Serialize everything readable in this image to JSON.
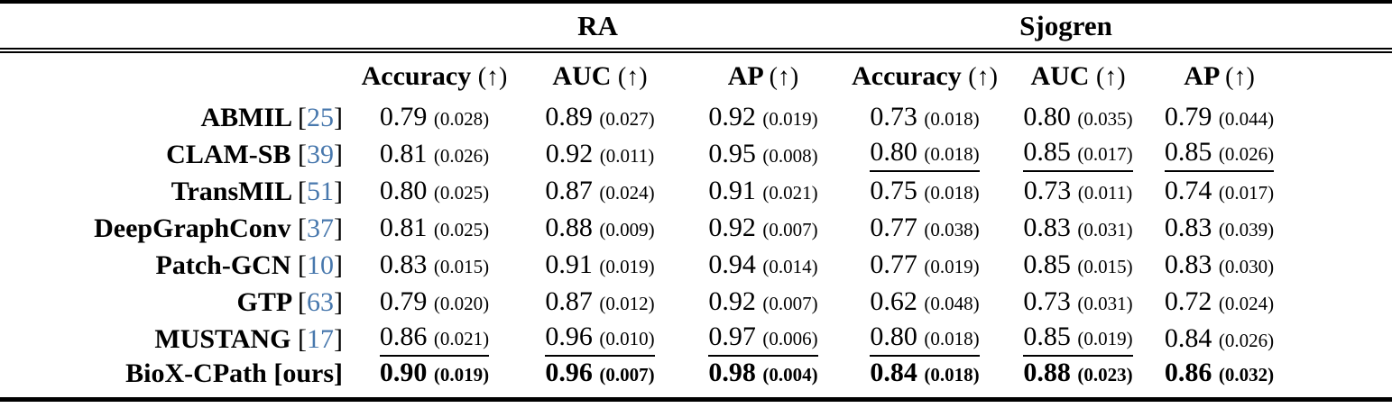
{
  "table": {
    "group_headers": [
      {
        "label": "RA"
      },
      {
        "label": "Sjogren"
      }
    ],
    "metric_headers": [
      {
        "name": "Accuracy",
        "arrow": "(↑)"
      },
      {
        "name": "AUC",
        "arrow": "(↑)"
      },
      {
        "name": "AP",
        "arrow": "(↑)"
      },
      {
        "name": "Accuracy",
        "arrow": "(↑)"
      },
      {
        "name": "AUC",
        "arrow": "(↑)"
      },
      {
        "name": "AP",
        "arrow": "(↑)"
      }
    ],
    "rows": [
      {
        "method": "ABMIL",
        "citation": "25",
        "is_ours": false,
        "cells": [
          {
            "value": "0.79",
            "std": "(0.028)",
            "underline": false,
            "bold": false
          },
          {
            "value": "0.89",
            "std": "(0.027)",
            "underline": false,
            "bold": false
          },
          {
            "value": "0.92",
            "std": "(0.019)",
            "underline": false,
            "bold": false
          },
          {
            "value": "0.73",
            "std": "(0.018)",
            "underline": false,
            "bold": false
          },
          {
            "value": "0.80",
            "std": "(0.035)",
            "underline": false,
            "bold": false
          },
          {
            "value": "0.79",
            "std": "(0.044)",
            "underline": false,
            "bold": false
          }
        ]
      },
      {
        "method": "CLAM-SB",
        "citation": "39",
        "is_ours": false,
        "cells": [
          {
            "value": "0.81",
            "std": "(0.026)",
            "underline": false,
            "bold": false
          },
          {
            "value": "0.92",
            "std": "(0.011)",
            "underline": false,
            "bold": false
          },
          {
            "value": "0.95",
            "std": "(0.008)",
            "underline": false,
            "bold": false
          },
          {
            "value": "0.80",
            "std": "(0.018)",
            "underline": true,
            "bold": false
          },
          {
            "value": "0.85",
            "std": "(0.017)",
            "underline": true,
            "bold": false
          },
          {
            "value": "0.85",
            "std": "(0.026)",
            "underline": true,
            "bold": false
          }
        ]
      },
      {
        "method": "TransMIL",
        "citation": "51",
        "is_ours": false,
        "cells": [
          {
            "value": "0.80",
            "std": "(0.025)",
            "underline": false,
            "bold": false
          },
          {
            "value": "0.87",
            "std": "(0.024)",
            "underline": false,
            "bold": false
          },
          {
            "value": "0.91",
            "std": "(0.021)",
            "underline": false,
            "bold": false
          },
          {
            "value": "0.75",
            "std": "(0.018)",
            "underline": false,
            "bold": false
          },
          {
            "value": "0.73",
            "std": "(0.011)",
            "underline": false,
            "bold": false
          },
          {
            "value": "0.74",
            "std": "(0.017)",
            "underline": false,
            "bold": false
          }
        ]
      },
      {
        "method": "DeepGraphConv",
        "citation": "37",
        "is_ours": false,
        "cells": [
          {
            "value": "0.81",
            "std": "(0.025)",
            "underline": false,
            "bold": false
          },
          {
            "value": "0.88",
            "std": "(0.009)",
            "underline": false,
            "bold": false
          },
          {
            "value": "0.92",
            "std": "(0.007)",
            "underline": false,
            "bold": false
          },
          {
            "value": "0.77",
            "std": "(0.038)",
            "underline": false,
            "bold": false
          },
          {
            "value": "0.83",
            "std": "(0.031)",
            "underline": false,
            "bold": false
          },
          {
            "value": "0.83",
            "std": "(0.039)",
            "underline": false,
            "bold": false
          }
        ]
      },
      {
        "method": "Patch-GCN",
        "citation": "10",
        "is_ours": false,
        "cells": [
          {
            "value": "0.83",
            "std": "(0.015)",
            "underline": false,
            "bold": false
          },
          {
            "value": "0.91",
            "std": "(0.019)",
            "underline": false,
            "bold": false
          },
          {
            "value": "0.94",
            "std": "(0.014)",
            "underline": false,
            "bold": false
          },
          {
            "value": "0.77",
            "std": "(0.019)",
            "underline": false,
            "bold": false
          },
          {
            "value": "0.85",
            "std": "(0.015)",
            "underline": false,
            "bold": false
          },
          {
            "value": "0.83",
            "std": "(0.030)",
            "underline": false,
            "bold": false
          }
        ]
      },
      {
        "method": "GTP",
        "citation": "63",
        "is_ours": false,
        "cells": [
          {
            "value": "0.79",
            "std": "(0.020)",
            "underline": false,
            "bold": false
          },
          {
            "value": "0.87",
            "std": "(0.012)",
            "underline": false,
            "bold": false
          },
          {
            "value": "0.92",
            "std": "(0.007)",
            "underline": false,
            "bold": false
          },
          {
            "value": "0.62",
            "std": "(0.048)",
            "underline": false,
            "bold": false
          },
          {
            "value": "0.73",
            "std": "(0.031)",
            "underline": false,
            "bold": false
          },
          {
            "value": "0.72",
            "std": "(0.024)",
            "underline": false,
            "bold": false
          }
        ]
      },
      {
        "method": "MUSTANG",
        "citation": "17",
        "is_ours": false,
        "cells": [
          {
            "value": "0.86",
            "std": "(0.021)",
            "underline": true,
            "bold": false
          },
          {
            "value": "0.96",
            "std": "(0.010)",
            "underline": true,
            "bold": false
          },
          {
            "value": "0.97",
            "std": "(0.006)",
            "underline": true,
            "bold": false
          },
          {
            "value": "0.80",
            "std": "(0.018)",
            "underline": true,
            "bold": false
          },
          {
            "value": "0.85",
            "std": "(0.019)",
            "underline": true,
            "bold": false
          },
          {
            "value": "0.84",
            "std": "(0.026)",
            "underline": false,
            "bold": false
          }
        ]
      },
      {
        "method": "BioX-CPath",
        "citation": "ours",
        "is_ours": true,
        "cells": [
          {
            "value": "0.90",
            "std": "(0.019)",
            "underline": false,
            "bold": true
          },
          {
            "value": "0.96",
            "std": "(0.007)",
            "underline": false,
            "bold": true
          },
          {
            "value": "0.98",
            "std": "(0.004)",
            "underline": false,
            "bold": true
          },
          {
            "value": "0.84",
            "std": "(0.018)",
            "underline": false,
            "bold": true
          },
          {
            "value": "0.88",
            "std": "(0.023)",
            "underline": false,
            "bold": true
          },
          {
            "value": "0.86",
            "std": "(0.032)",
            "underline": false,
            "bold": true
          }
        ]
      }
    ]
  },
  "colors": {
    "citation_blue": "#4878ad",
    "text": "#000000",
    "rule": "#000000"
  }
}
